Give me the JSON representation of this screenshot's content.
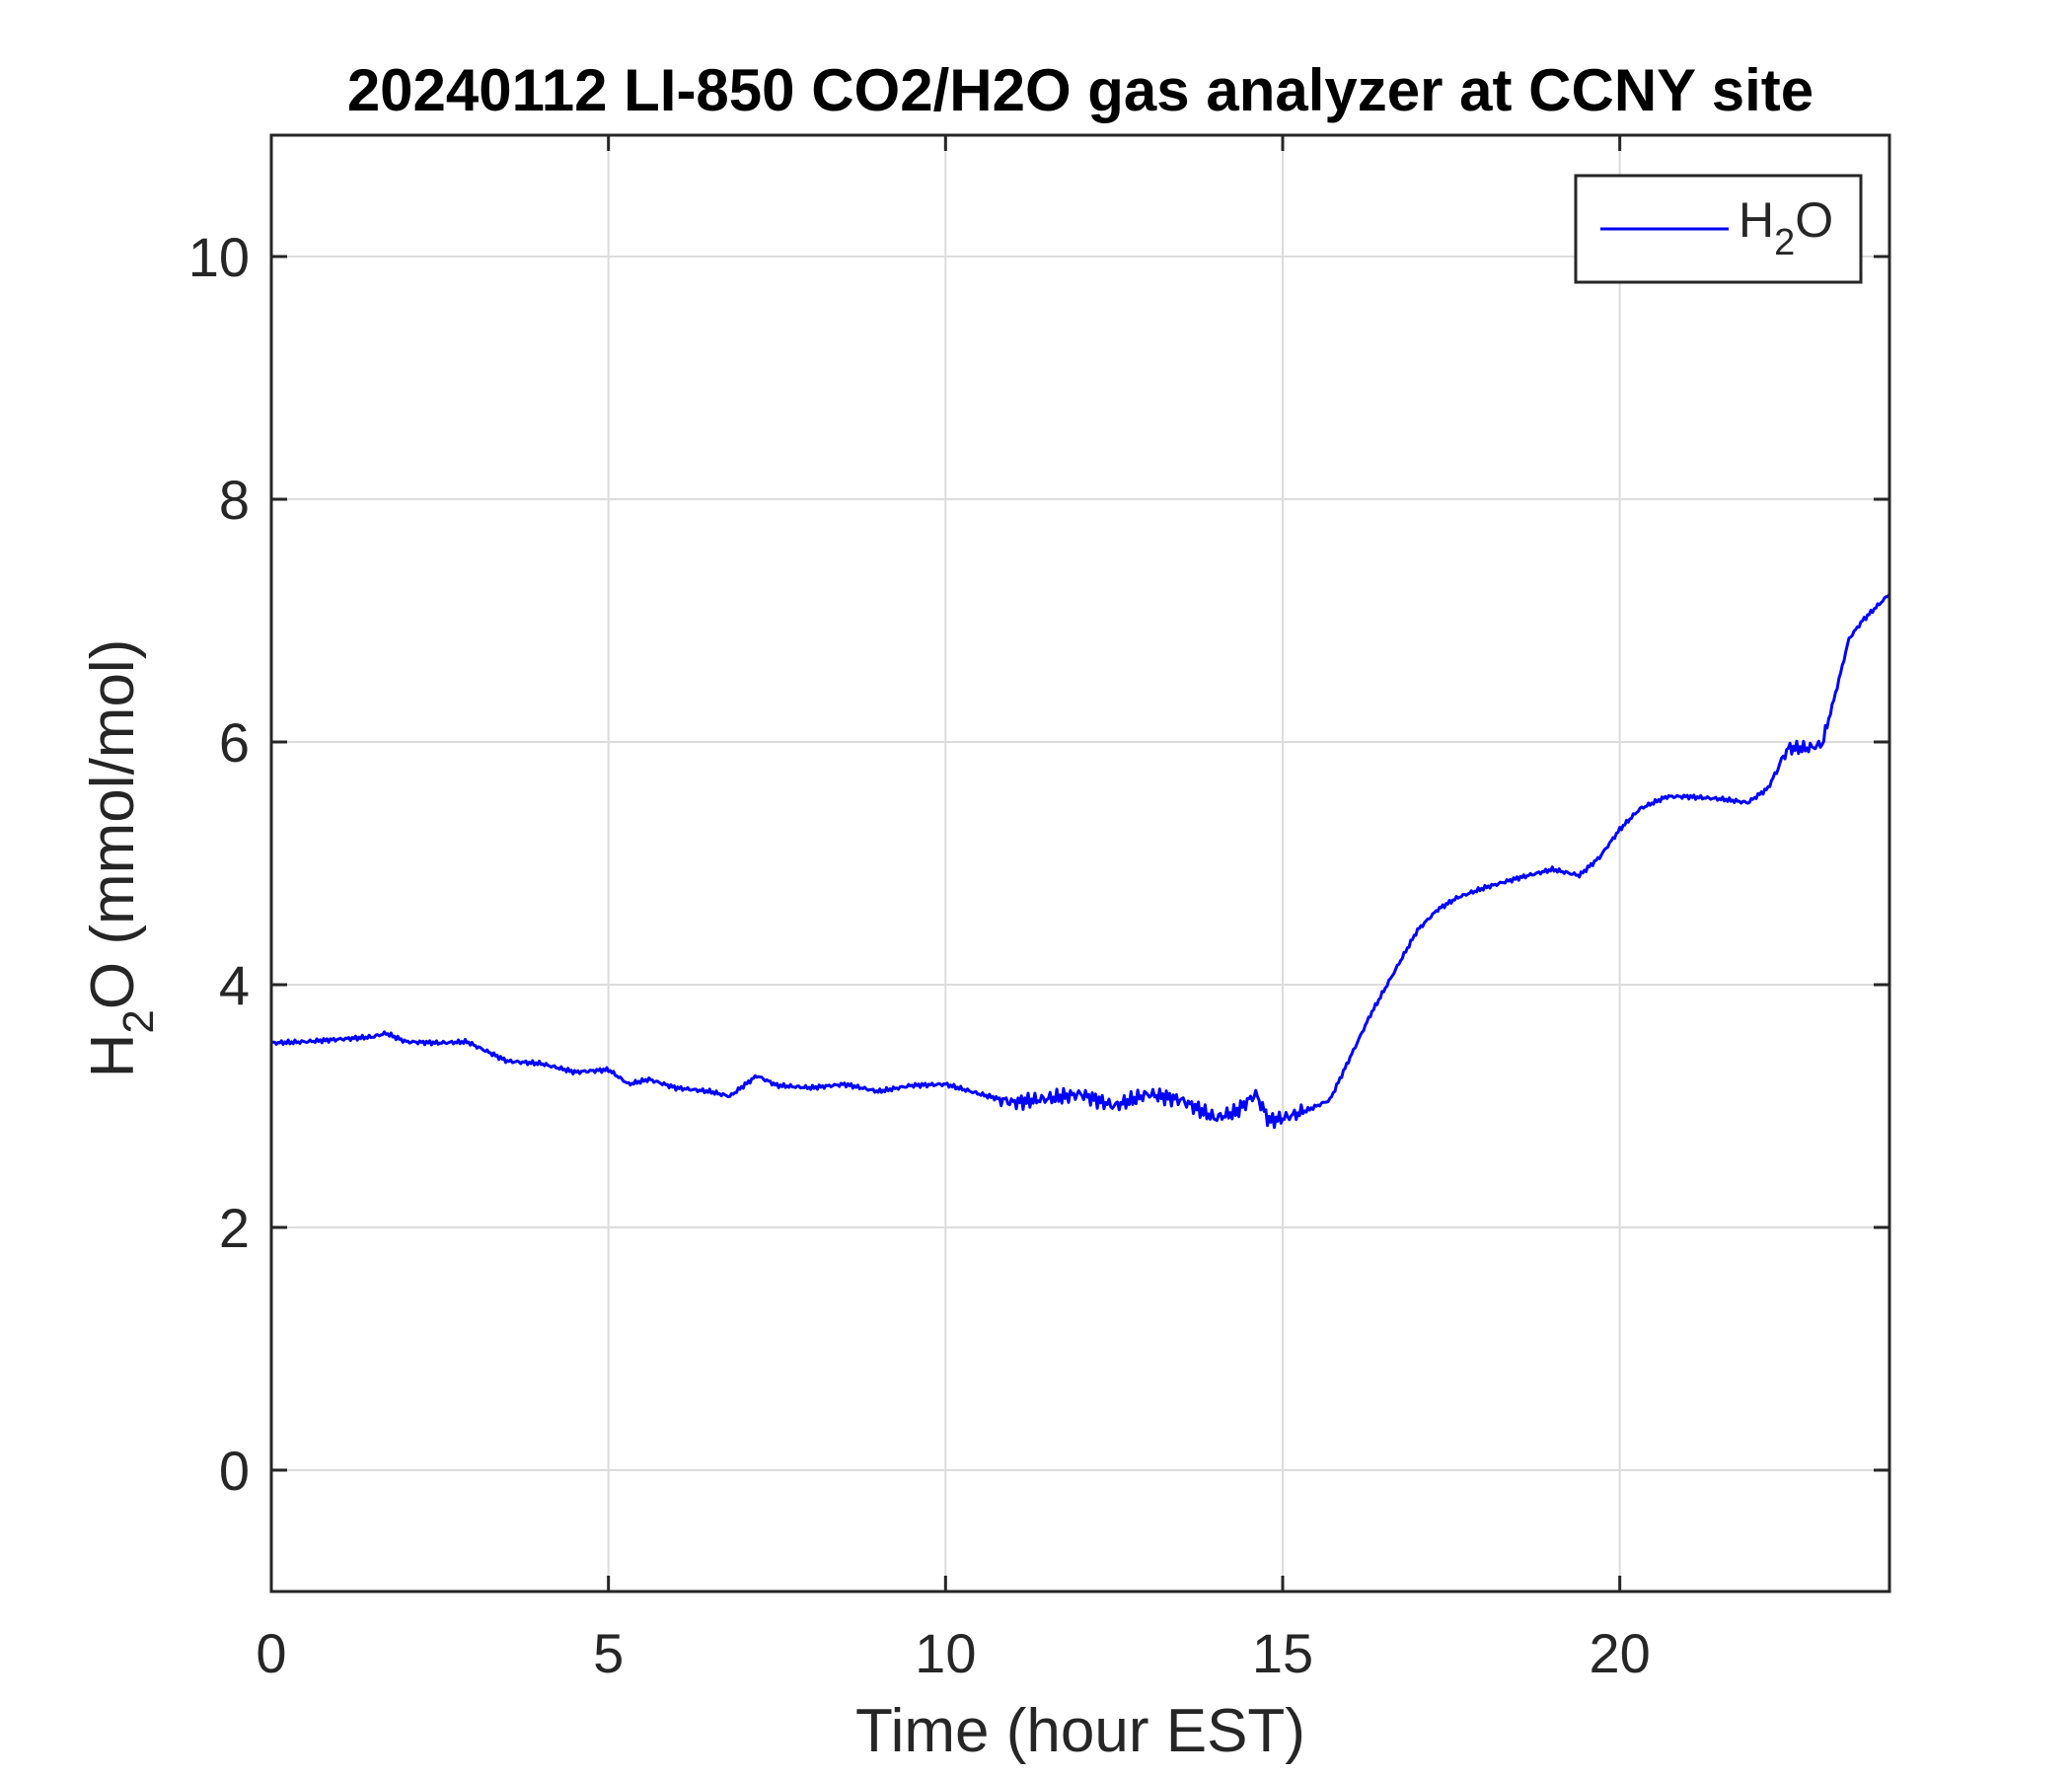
{
  "chart_data": {
    "type": "line",
    "title": "20240112 LI-850 CO2/H2O gas analyzer at CCNY site",
    "xlabel": "Time (hour EST)",
    "ylabel": {
      "main": "H",
      "sub": "2",
      "rest": "O (mmol/mol)"
    },
    "xlim": [
      0,
      24
    ],
    "ylim": [
      -1,
      11
    ],
    "xticks": [
      0,
      5,
      10,
      15,
      20
    ],
    "yticks": [
      0,
      2,
      4,
      6,
      8,
      10
    ],
    "grid": true,
    "legend_position": "top-right",
    "series": [
      {
        "name": {
          "main": "H",
          "sub": "2",
          "rest": "O"
        },
        "color": "#0000ff",
        "x": [
          0,
          0.5,
          1.0,
          1.5,
          1.7,
          2.0,
          2.5,
          2.9,
          3.2,
          3.5,
          4.0,
          4.5,
          5.0,
          5.3,
          5.6,
          6.0,
          6.5,
          6.8,
          7.2,
          7.5,
          8.0,
          8.5,
          9.0,
          9.5,
          10.0,
          10.5,
          11.0,
          11.5,
          12.0,
          12.5,
          13.0,
          13.5,
          14.0,
          14.3,
          14.6,
          14.8,
          15.0,
          15.3,
          15.7,
          16.0,
          16.3,
          16.6,
          17.0,
          17.3,
          17.6,
          18.0,
          18.5,
          19.0,
          19.4,
          19.7,
          20.0,
          20.3,
          20.7,
          21.0,
          21.5,
          21.9,
          22.2,
          22.4,
          22.5,
          22.8,
          23.0,
          23.2,
          23.4,
          23.6,
          24.0
        ],
        "values": [
          3.52,
          3.53,
          3.55,
          3.57,
          3.6,
          3.53,
          3.52,
          3.53,
          3.45,
          3.37,
          3.35,
          3.28,
          3.3,
          3.18,
          3.22,
          3.15,
          3.12,
          3.08,
          3.25,
          3.17,
          3.15,
          3.18,
          3.12,
          3.17,
          3.18,
          3.1,
          3.03,
          3.06,
          3.1,
          3.0,
          3.1,
          3.05,
          2.9,
          2.95,
          3.1,
          2.88,
          2.9,
          2.95,
          3.05,
          3.4,
          3.75,
          4.05,
          4.45,
          4.62,
          4.72,
          4.8,
          4.88,
          4.95,
          4.9,
          5.05,
          5.28,
          5.45,
          5.55,
          5.55,
          5.53,
          5.5,
          5.62,
          5.85,
          5.95,
          5.95,
          5.98,
          6.4,
          6.85,
          7.0,
          7.22
        ]
      }
    ]
  }
}
